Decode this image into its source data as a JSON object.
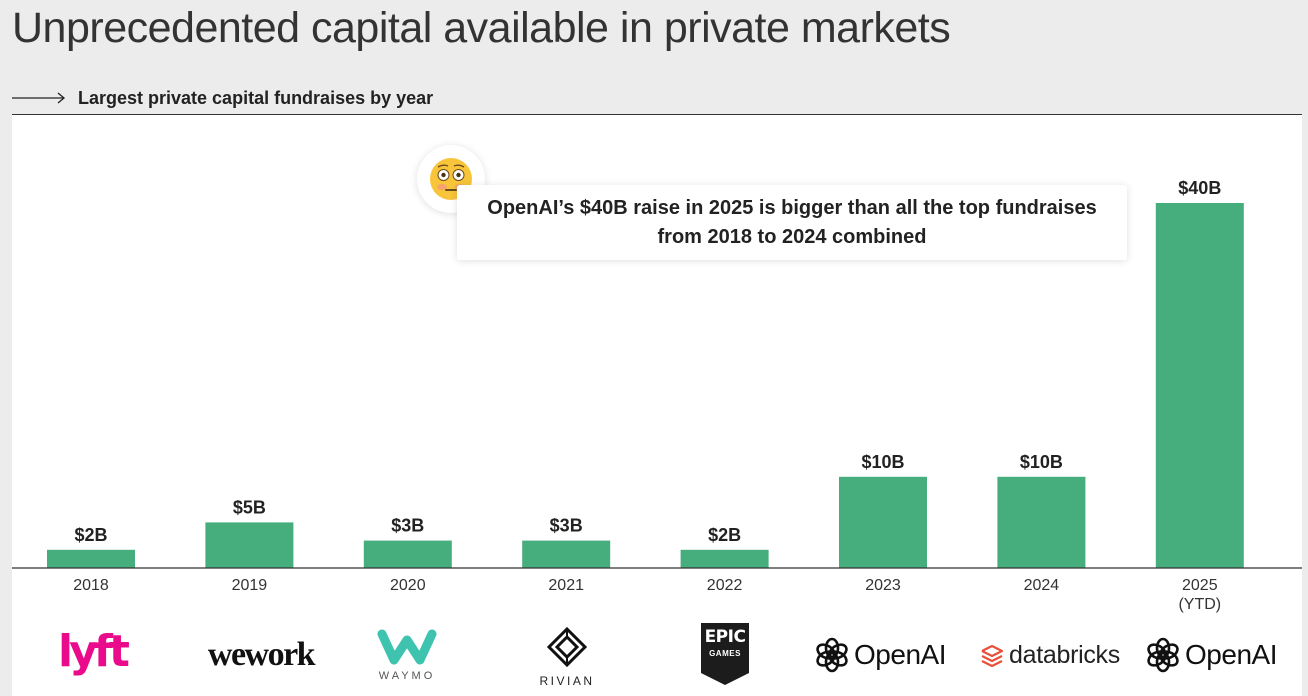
{
  "title": "Unprecedented capital available in private markets",
  "subtitle": "Largest private capital fundraises by year",
  "callout": "OpenAI’s $40B raise in 2025 is bigger than all the top fundraises from 2018 to 2024 combined",
  "colors": {
    "bar": "#46ad7d",
    "lyft": "#ea0b8c",
    "waymo": "#3ec4ae",
    "text": "#222222"
  },
  "chart_data": {
    "type": "bar",
    "categories": [
      "2018",
      "2019",
      "2020",
      "2021",
      "2022",
      "2023",
      "2024",
      "2025\n(YTD)"
    ],
    "values": [
      2,
      5,
      3,
      3,
      2,
      10,
      10,
      40
    ],
    "data_labels": [
      "$2B",
      "$5B",
      "$3B",
      "$3B",
      "$2B",
      "$10B",
      "$10B",
      "$40B"
    ],
    "title": "Largest private capital fundraises by year",
    "xlabel": "",
    "ylabel": "",
    "ylim": [
      0,
      40
    ],
    "grid": false,
    "legend": "none"
  },
  "logos": [
    {
      "icon": "lyft-logo",
      "text": "lyft"
    },
    {
      "icon": "wework-logo",
      "text": "wework"
    },
    {
      "icon": "waymo-logo",
      "text": "WAYMO"
    },
    {
      "icon": "rivian-logo",
      "text": "RIVIAN"
    },
    {
      "icon": "epic-games-logo",
      "text": "EPIC",
      "text2": "GAMES"
    },
    {
      "icon": "openai-logo",
      "text": "OpenAI"
    },
    {
      "icon": "databricks-logo",
      "text": "databricks"
    },
    {
      "icon": "openai-logo",
      "text": "OpenAI"
    }
  ]
}
